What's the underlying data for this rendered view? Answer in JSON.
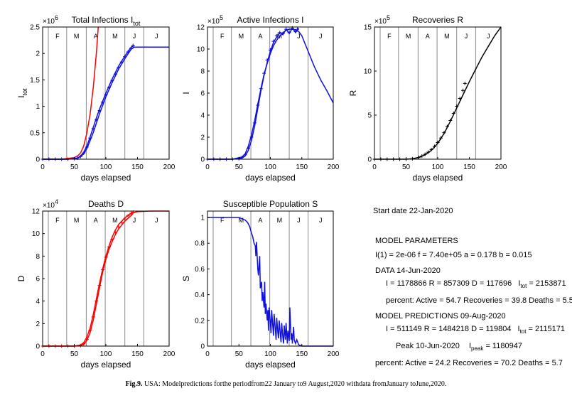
{
  "chart_data": [
    {
      "type": "line",
      "title": "Total Infections I",
      "title_sub": "tot",
      "ylabel": "I",
      "ylabel_sub": "tot",
      "xlabel": "days elapsed",
      "xlim": [
        0,
        200
      ],
      "ylim": [
        0,
        2.5
      ],
      "exponent": "6",
      "xticks": [
        "0",
        "50",
        "100",
        "150",
        "200"
      ],
      "yticks": [
        "0",
        "0.5",
        "1",
        "1.5",
        "2",
        "2.5"
      ],
      "months": [
        "F",
        "M",
        "A",
        "M",
        "J",
        "J"
      ],
      "grid": true,
      "series": [
        {
          "color": "#ff0000",
          "style": "line",
          "x": [
            0,
            30,
            50,
            55,
            60,
            65,
            70,
            75,
            80,
            85,
            88
          ],
          "y": [
            0,
            0.0,
            0.03,
            0.06,
            0.12,
            0.25,
            0.5,
            0.85,
            1.35,
            2.0,
            2.5
          ]
        },
        {
          "color": "#1010e0",
          "style": "line",
          "x": [
            0,
            40,
            55,
            60,
            65,
            70,
            75,
            80,
            85,
            90,
            95,
            100,
            110,
            120,
            130,
            140,
            145,
            150,
            170,
            200
          ],
          "y": [
            0,
            0.0,
            0.02,
            0.05,
            0.1,
            0.2,
            0.35,
            0.5,
            0.68,
            0.86,
            1.02,
            1.18,
            1.45,
            1.7,
            1.9,
            2.08,
            2.12,
            2.12,
            2.12,
            2.12
          ]
        },
        {
          "color": "#1010e0",
          "style": "line",
          "x": [
            0,
            40,
            55,
            60,
            65,
            70,
            75,
            80,
            85,
            90,
            95,
            100,
            110,
            120,
            130,
            140,
            145
          ],
          "y": [
            0,
            0.0,
            0.02,
            0.06,
            0.13,
            0.25,
            0.42,
            0.6,
            0.78,
            0.95,
            1.1,
            1.25,
            1.52,
            1.76,
            1.95,
            2.12,
            2.15
          ]
        },
        {
          "color": "#1010e0",
          "style": "plus",
          "x": [
            0,
            10,
            20,
            30,
            40,
            50,
            55,
            60,
            65,
            70,
            75,
            80,
            85,
            90,
            95,
            100,
            105,
            110,
            115,
            120,
            125,
            130,
            135,
            140,
            143
          ],
          "y": [
            0,
            0,
            0,
            0,
            0,
            0.01,
            0.02,
            0.05,
            0.12,
            0.23,
            0.4,
            0.58,
            0.75,
            0.92,
            1.08,
            1.22,
            1.36,
            1.49,
            1.61,
            1.73,
            1.84,
            1.94,
            2.03,
            2.1,
            2.15
          ]
        }
      ]
    },
    {
      "type": "line",
      "title": "Active Infections I",
      "ylabel": "I",
      "xlabel": "days elapsed",
      "xlim": [
        0,
        200
      ],
      "ylim": [
        0,
        12
      ],
      "exponent": "5",
      "xticks": [
        "0",
        "50",
        "100",
        "150",
        "200"
      ],
      "yticks": [
        "0",
        "2",
        "4",
        "6",
        "8",
        "10",
        "12"
      ],
      "months": [
        "F",
        "M",
        "A",
        "M",
        "J",
        "J"
      ],
      "grid": true,
      "series": [
        {
          "color": "#1010e0",
          "style": "line",
          "x": [
            0,
            40,
            55,
            60,
            65,
            70,
            75,
            80,
            85,
            90,
            95,
            100,
            105,
            110,
            115,
            120,
            125,
            130,
            135,
            140,
            145,
            150,
            160,
            170,
            180,
            190,
            200
          ],
          "y": [
            0,
            0,
            0.2,
            0.5,
            1.2,
            2.2,
            3.5,
            5.0,
            6.4,
            7.7,
            8.7,
            9.6,
            10.3,
            10.8,
            11.2,
            11.5,
            11.7,
            11.8,
            11.8,
            11.75,
            11.6,
            11.2,
            9.8,
            8.4,
            7.2,
            6.2,
            5.1
          ]
        },
        {
          "color": "#1010e0",
          "style": "line",
          "x": [
            0,
            40,
            55,
            60,
            65,
            70,
            75,
            80,
            85,
            90,
            95,
            100,
            105,
            110,
            115,
            120,
            125,
            130,
            135,
            140,
            145
          ],
          "y": [
            0,
            0,
            0.1,
            0.3,
            0.8,
            1.7,
            3.0,
            4.6,
            6.2,
            7.6,
            8.8,
            9.8,
            10.6,
            11.1,
            11.5,
            11.3,
            11.8,
            11.4,
            11.9,
            11.5,
            11.9
          ]
        },
        {
          "color": "#1010e0",
          "style": "plus",
          "x": [
            0,
            10,
            20,
            30,
            40,
            50,
            55,
            60,
            65,
            70,
            75,
            80,
            85,
            90,
            95,
            100,
            105,
            110,
            115,
            120,
            125,
            130,
            135,
            140,
            143
          ],
          "y": [
            0,
            0,
            0,
            0,
            0,
            0.05,
            0.15,
            0.4,
            1.0,
            2.0,
            3.3,
            4.9,
            6.4,
            7.8,
            9.0,
            9.9,
            10.7,
            11.2,
            11.5,
            11.4,
            11.8,
            11.5,
            11.9,
            11.6,
            11.8
          ]
        }
      ]
    },
    {
      "type": "line",
      "title": "Recoveries R",
      "ylabel": "R",
      "xlabel": "days elapsed",
      "xlim": [
        0,
        200
      ],
      "ylim": [
        0,
        15
      ],
      "exponent": "5",
      "xticks": [
        "0",
        "50",
        "100",
        "150",
        "200"
      ],
      "yticks": [
        "0",
        "5",
        "10",
        "15"
      ],
      "months": [
        "F",
        "M",
        "A",
        "M",
        "J",
        "J"
      ],
      "grid": true,
      "series": [
        {
          "color": "#000000",
          "style": "line",
          "x": [
            0,
            50,
            60,
            70,
            80,
            90,
            100,
            110,
            120,
            130,
            140,
            150,
            160,
            170,
            180,
            190,
            200
          ],
          "y": [
            0,
            0,
            0.05,
            0.2,
            0.5,
            1.0,
            1.8,
            2.9,
            4.3,
            5.8,
            7.3,
            8.8,
            10.2,
            11.6,
            12.8,
            14.0,
            15.0
          ]
        },
        {
          "color": "#000000",
          "style": "plus",
          "x": [
            0,
            10,
            20,
            30,
            40,
            50,
            60,
            70,
            75,
            80,
            85,
            90,
            95,
            100,
            105,
            110,
            115,
            120,
            125,
            130,
            135,
            140,
            143
          ],
          "y": [
            0,
            0,
            0,
            0,
            0,
            0,
            0.05,
            0.2,
            0.35,
            0.55,
            0.8,
            1.1,
            1.45,
            1.9,
            2.4,
            3.0,
            3.7,
            4.4,
            5.2,
            6.0,
            6.9,
            7.8,
            8.6
          ]
        }
      ]
    },
    {
      "type": "line",
      "title": "Deaths D",
      "ylabel": "D",
      "xlabel": "days elapsed",
      "xlim": [
        0,
        200
      ],
      "ylim": [
        0,
        12
      ],
      "exponent": "4",
      "xticks": [
        "0",
        "50",
        "100",
        "150",
        "200"
      ],
      "yticks": [
        "0",
        "2",
        "4",
        "6",
        "8",
        "10",
        "12"
      ],
      "months": [
        "F",
        "M",
        "A",
        "M",
        "J",
        "J"
      ],
      "grid": true,
      "series": [
        {
          "color": "#ff0000",
          "style": "line",
          "x": [
            0,
            50,
            60,
            65,
            70,
            75,
            80,
            85,
            90,
            95,
            100,
            105,
            110,
            115,
            120,
            130,
            140,
            150,
            170,
            200
          ],
          "y": [
            0,
            0,
            0.1,
            0.3,
            0.8,
            1.6,
            2.8,
            4.2,
            5.6,
            6.9,
            8.0,
            8.9,
            9.7,
            10.3,
            10.8,
            11.4,
            11.8,
            11.95,
            12.0,
            12.0
          ]
        },
        {
          "color": "#ff0000",
          "style": "line",
          "x": [
            0,
            50,
            60,
            65,
            70,
            75,
            80,
            85,
            90,
            95,
            100,
            105,
            110,
            115,
            120,
            130,
            140,
            143
          ],
          "y": [
            0,
            0,
            0.05,
            0.15,
            0.5,
            1.2,
            2.3,
            3.7,
            5.2,
            6.6,
            7.7,
            8.6,
            9.3,
            9.9,
            10.4,
            11.1,
            11.6,
            11.8
          ]
        },
        {
          "color": "#ff0000",
          "style": "plus",
          "x": [
            0,
            10,
            20,
            30,
            40,
            50,
            60,
            65,
            70,
            75,
            80,
            85,
            90,
            95,
            100,
            105,
            110,
            115,
            120,
            125,
            130,
            135,
            140,
            143
          ],
          "y": [
            0,
            0,
            0,
            0,
            0,
            0,
            0.05,
            0.2,
            0.6,
            1.4,
            2.6,
            4.0,
            5.4,
            6.8,
            7.9,
            8.8,
            9.5,
            10.1,
            10.6,
            11.0,
            11.3,
            11.6,
            11.8,
            11.9
          ]
        }
      ]
    },
    {
      "type": "line",
      "title": "Susceptible Population S",
      "ylabel": "S",
      "xlabel": "days elapsed",
      "xlim": [
        0,
        200
      ],
      "ylim": [
        0,
        1.05
      ],
      "xticks": [
        "0",
        "50",
        "100",
        "150",
        "200"
      ],
      "yticks": [
        "0",
        "0.2",
        "0.4",
        "0.6",
        "0.8",
        "1"
      ],
      "months": [
        "F",
        "M",
        "A",
        "M",
        "J",
        "J"
      ],
      "grid": true,
      "series": [
        {
          "color": "#1010e0",
          "style": "line",
          "x": [
            0,
            40,
            50,
            55,
            60,
            64,
            67,
            70,
            72,
            74,
            76,
            77,
            78,
            80,
            81,
            83,
            84,
            86,
            87,
            88,
            90,
            91,
            92,
            93,
            95,
            96,
            97,
            98,
            100,
            101,
            102,
            104,
            105,
            106,
            108,
            109,
            110,
            112,
            113,
            114,
            116,
            117,
            118,
            120,
            121,
            122,
            124,
            125,
            127,
            128,
            130,
            131,
            133,
            134,
            135,
            137,
            138,
            140,
            142,
            145,
            150,
            160,
            200
          ],
          "y": [
            1.0,
            1.0,
            1.0,
            0.99,
            0.98,
            0.96,
            0.93,
            0.88,
            0.85,
            0.8,
            0.78,
            0.7,
            0.81,
            0.6,
            0.55,
            0.7,
            0.45,
            0.5,
            0.35,
            0.42,
            0.3,
            0.5,
            0.25,
            0.33,
            0.2,
            0.28,
            0.12,
            0.3,
            0.18,
            0.1,
            0.28,
            0.15,
            0.08,
            0.25,
            0.12,
            0.05,
            0.22,
            0.1,
            0.06,
            0.2,
            0.08,
            0.03,
            0.18,
            0.06,
            0.02,
            0.16,
            0.05,
            0.18,
            0.02,
            0.12,
            0.04,
            0.3,
            0.05,
            0.1,
            0.02,
            0.15,
            0.05,
            0.02,
            0.05,
            0.01,
            0,
            0,
            0
          ]
        }
      ]
    }
  ],
  "params": {
    "start_date": "Start date    22-Jan-2020",
    "header1": "MODEL PARAMETERS",
    "line_i1": "I(1) = 2e-06  f = 7.40e+05  a = 0.178  b = 0.015",
    "header2": "DATA 14-Jun-2020",
    "data_line1": "I = 1178866  R = 857309  D = 117696",
    "data_itot_pre": "I",
    "data_itot_sub": "tot",
    "data_itot_val": " = 2153871",
    "data_pct": "percent: Active = 54.7  Recoveries = 39.8   Deaths = 5.5",
    "header3": "MODEL PREDICTIONS    09-Aug-2020",
    "pred_line1": "I = 511149   R = 1484218  D = 119804",
    "pred_itot_pre": "I",
    "pred_itot_sub": "tot",
    "pred_itot_val": " = 2115171",
    "peak_text": "Peak   10-Jun-2020",
    "peak_i_pre": "I",
    "peak_i_sub": "peak",
    "peak_i_val": " = 1180947",
    "pred_pct": "percent: Active = 24.2  Recoveries = 70.2   Deaths = 5.7"
  },
  "caption": {
    "label": "Fig.9.",
    "text": "  USA: Modelpredictions forthe periodfrom22 January to9 August,2020 withdata fromJanuary toJune,2020."
  }
}
